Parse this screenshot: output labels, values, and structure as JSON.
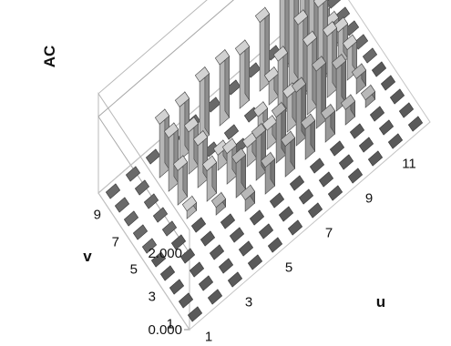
{
  "chart_data": {
    "type": "bar3d",
    "title": "",
    "zlabel": "AC",
    "xlabel": "u",
    "ylabel": "v",
    "z_ticks": [
      "0.000",
      "2.000"
    ],
    "zlim": [
      0,
      2.6
    ],
    "u_ticks": [
      "1",
      "3",
      "5",
      "7",
      "9",
      "11"
    ],
    "v_ticks": [
      "1",
      "3",
      "5",
      "7",
      "9"
    ],
    "u_values": [
      1,
      2,
      3,
      4,
      5,
      6,
      7,
      8,
      9,
      10,
      11,
      12
    ],
    "v_values": [
      1,
      2,
      3,
      4,
      5,
      6,
      7,
      8,
      9,
      10
    ],
    "grid": true,
    "values": [
      [
        0,
        0,
        0,
        0,
        0,
        0,
        0,
        0,
        0,
        0
      ],
      [
        0,
        0,
        0,
        0,
        0,
        0,
        0,
        0,
        0,
        0
      ],
      [
        0,
        0,
        0,
        0,
        0,
        0.2,
        0.9,
        1.4,
        1.4,
        0
      ],
      [
        0,
        0,
        0,
        0,
        0.2,
        0.8,
        1.1,
        1.1,
        1.4,
        0
      ],
      [
        0,
        0,
        0,
        0.3,
        0.9,
        0.8,
        0.4,
        0,
        1.6,
        0
      ],
      [
        0,
        0,
        0,
        0.7,
        1.1,
        0.5,
        0,
        0,
        1.6,
        0
      ],
      [
        0,
        0,
        0,
        0.8,
        1.2,
        0.5,
        0.5,
        0,
        1.4,
        0
      ],
      [
        0,
        0,
        0,
        0.8,
        1.4,
        0.9,
        1.5,
        0.6,
        1.8,
        0
      ],
      [
        0,
        0,
        0,
        0.6,
        1.5,
        1.8,
        2.0,
        2.4,
        2.2,
        0
      ],
      [
        0,
        0,
        0,
        0.4,
        1.1,
        1.6,
        2.0,
        2.0,
        1.8,
        0
      ],
      [
        0,
        0,
        0,
        0.2,
        0.4,
        0.8,
        0.9,
        0.7,
        0.6,
        0
      ],
      [
        0,
        0,
        0,
        0,
        0,
        0,
        0,
        0,
        0,
        0
      ]
    ]
  }
}
